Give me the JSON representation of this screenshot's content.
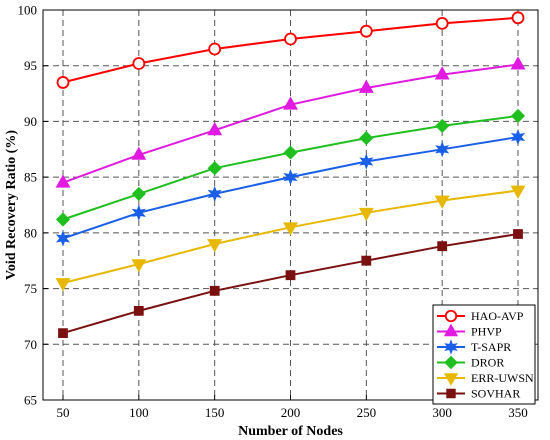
{
  "chart_data": {
    "type": "line",
    "title": "",
    "xlabel": "Number of Nodes",
    "ylabel": "Void Recovery Ratio (%)",
    "x": [
      50,
      100,
      150,
      200,
      250,
      300,
      350
    ],
    "xlim": [
      50,
      350
    ],
    "ylim": [
      65,
      100
    ],
    "yticks": [
      65,
      70,
      75,
      80,
      85,
      90,
      95,
      100
    ],
    "grid": true,
    "legend_position": "bottom-right",
    "series": [
      {
        "name": "HAO-AVP",
        "color": "#ff0000",
        "marker": "circle",
        "values": [
          93.5,
          95.2,
          96.5,
          97.4,
          98.1,
          98.8,
          99.3
        ]
      },
      {
        "name": "PHVP",
        "color": "#e01ae0",
        "marker": "triangle-up",
        "values": [
          84.5,
          87.0,
          89.2,
          91.5,
          93.0,
          94.2,
          95.1
        ]
      },
      {
        "name": "T-SAPR",
        "color": "#1a5fe8",
        "marker": "star",
        "values": [
          79.5,
          81.8,
          83.5,
          85.0,
          86.4,
          87.5,
          88.6
        ]
      },
      {
        "name": "DROR",
        "color": "#1fbf1f",
        "marker": "diamond",
        "values": [
          81.2,
          83.5,
          85.8,
          87.2,
          88.5,
          89.6,
          90.5
        ]
      },
      {
        "name": "ERR-UWSN",
        "color": "#e8b800",
        "marker": "triangle-down",
        "values": [
          75.5,
          77.2,
          79.0,
          80.5,
          81.8,
          82.9,
          83.8
        ]
      },
      {
        "name": "SOVHAR",
        "color": "#7a1010",
        "marker": "square",
        "values": [
          71.0,
          73.0,
          74.8,
          76.2,
          77.5,
          78.8,
          79.9
        ]
      }
    ]
  }
}
